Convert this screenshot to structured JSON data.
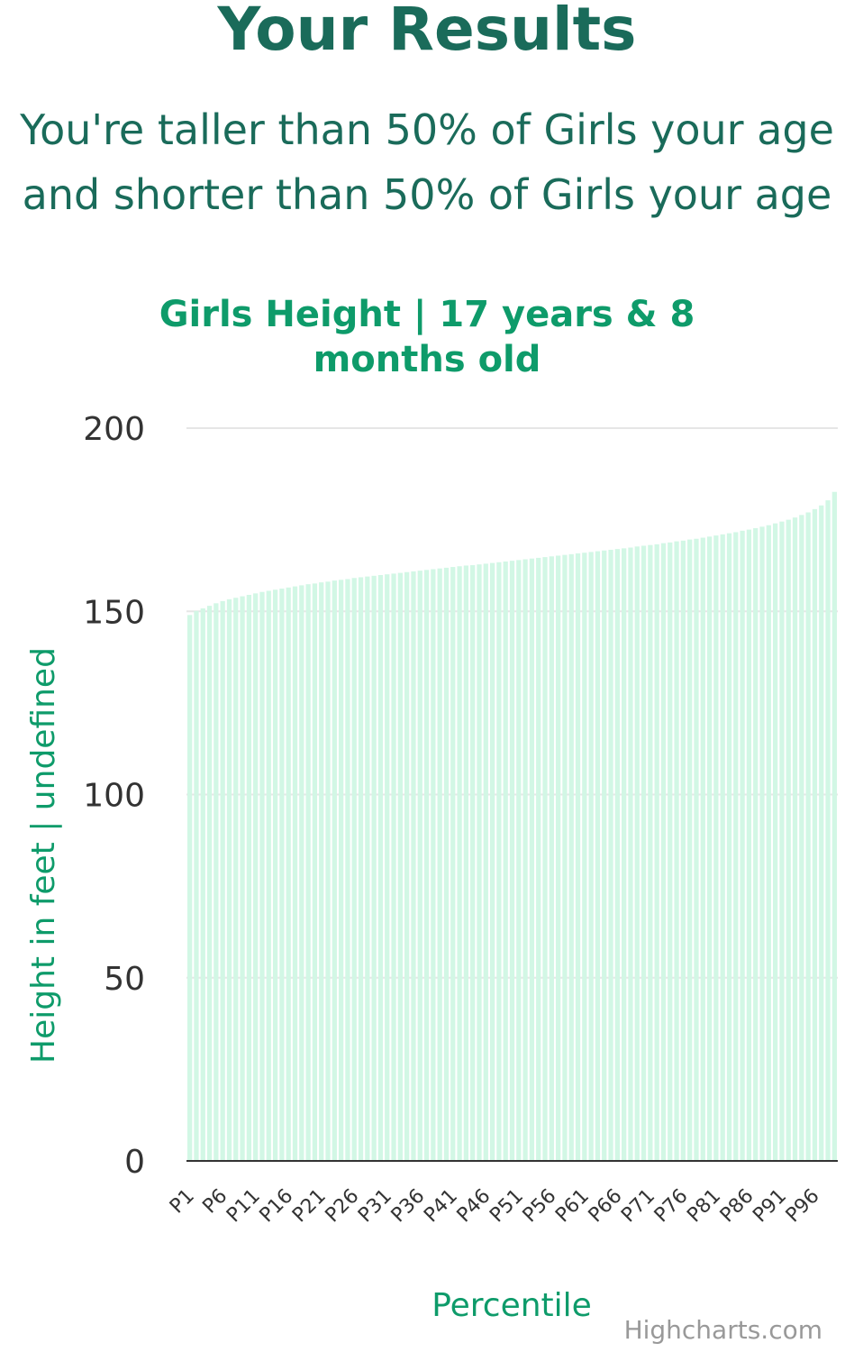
{
  "page": {
    "heading": "Your Results",
    "line1": "You're taller than 50% of Girls your age",
    "line2": "and shorter than 50% of Girls your age"
  },
  "chart_data": {
    "type": "bar",
    "title_line1": "Girls Height | 17 years & 8",
    "title_line2": "months old",
    "xlabel": "Percentile",
    "ylabel": "Height in feet | undefined",
    "ylim": [
      0,
      200
    ],
    "yticks": [
      0,
      50,
      100,
      150,
      200
    ],
    "xtick_labels": [
      "P1",
      "P6",
      "P11",
      "P16",
      "P21",
      "P26",
      "P31",
      "P36",
      "P41",
      "P46",
      "P51",
      "P56",
      "P61",
      "P66",
      "P71",
      "P76",
      "P81",
      "P86",
      "P91",
      "P96"
    ],
    "bar_color": "#d2f7e5",
    "grid": true,
    "categories": [
      "P1",
      "P2",
      "P3",
      "P4",
      "P5",
      "P6",
      "P7",
      "P8",
      "P9",
      "P10",
      "P11",
      "P12",
      "P13",
      "P14",
      "P15",
      "P16",
      "P17",
      "P18",
      "P19",
      "P20",
      "P21",
      "P22",
      "P23",
      "P24",
      "P25",
      "P26",
      "P27",
      "P28",
      "P29",
      "P30",
      "P31",
      "P32",
      "P33",
      "P34",
      "P35",
      "P36",
      "P37",
      "P38",
      "P39",
      "P40",
      "P41",
      "P42",
      "P43",
      "P44",
      "P45",
      "P46",
      "P47",
      "P48",
      "P49",
      "P50",
      "P51",
      "P52",
      "P53",
      "P54",
      "P55",
      "P56",
      "P57",
      "P58",
      "P59",
      "P60",
      "P61",
      "P62",
      "P63",
      "P64",
      "P65",
      "P66",
      "P67",
      "P68",
      "P69",
      "P70",
      "P71",
      "P72",
      "P73",
      "P74",
      "P75",
      "P76",
      "P77",
      "P78",
      "P79",
      "P80",
      "P81",
      "P82",
      "P83",
      "P84",
      "P85",
      "P86",
      "P87",
      "P88",
      "P89",
      "P90",
      "P91",
      "P92",
      "P93",
      "P94",
      "P95",
      "P96",
      "P97",
      "P98",
      "P99"
    ],
    "values": [
      149.0,
      150.1,
      150.8,
      151.5,
      152.2,
      152.8,
      153.3,
      153.7,
      154.1,
      154.5,
      154.9,
      155.3,
      155.6,
      155.9,
      156.2,
      156.5,
      156.8,
      157.1,
      157.4,
      157.6,
      157.9,
      158.1,
      158.4,
      158.6,
      158.8,
      159.1,
      159.3,
      159.5,
      159.7,
      159.9,
      160.1,
      160.3,
      160.5,
      160.7,
      160.9,
      161.1,
      161.3,
      161.5,
      161.7,
      161.9,
      162.1,
      162.3,
      162.5,
      162.6,
      162.8,
      163.0,
      163.2,
      163.4,
      163.6,
      163.8,
      164.0,
      164.2,
      164.4,
      164.6,
      164.8,
      165.0,
      165.2,
      165.4,
      165.6,
      165.8,
      166.0,
      166.2,
      166.4,
      166.6,
      166.8,
      167.0,
      167.2,
      167.4,
      167.7,
      167.9,
      168.1,
      168.3,
      168.6,
      168.8,
      169.1,
      169.3,
      169.6,
      169.8,
      170.1,
      170.4,
      170.7,
      171.0,
      171.3,
      171.6,
      172.0,
      172.3,
      172.7,
      173.1,
      173.5,
      174.0,
      174.5,
      175.0,
      175.6,
      176.3,
      177.0,
      177.9,
      178.9,
      180.3,
      182.6
    ]
  }
}
